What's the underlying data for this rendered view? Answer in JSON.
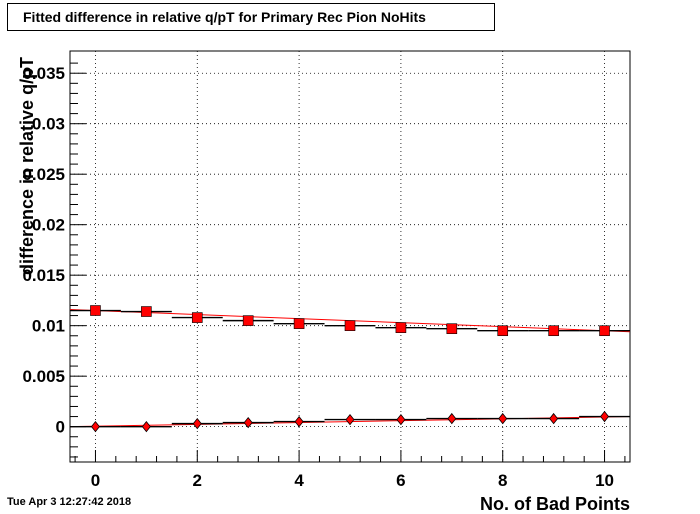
{
  "title": "Fitted difference in relative q/pT for Primary Rec Pion NoHits",
  "timestamp": "Tue Apr  3 12:27:42 2018",
  "chart_data": {
    "type": "scatter",
    "title": "Fitted difference in relative q/pT for Primary Rec Pion NoHits",
    "xlabel": "No. of Bad Points",
    "ylabel": "difference in relative q/pT",
    "xlim": [
      -0.5,
      10.5
    ],
    "ylim": [
      -0.0035,
      0.0372
    ],
    "grid": true,
    "x_ticks": [
      0,
      2,
      4,
      6,
      8,
      10
    ],
    "x_tick_labels": [
      "0",
      "2",
      "4",
      "6",
      "8",
      "10"
    ],
    "y_ticks": [
      0,
      0.005,
      0.01,
      0.015,
      0.02,
      0.025,
      0.03,
      0.035
    ],
    "y_tick_labels": [
      "0",
      "0.005",
      "0.01",
      "0.015",
      "0.02",
      "0.025",
      "0.03",
      "0.035"
    ],
    "x": [
      0,
      1,
      2,
      3,
      4,
      5,
      6,
      7,
      8,
      9,
      10
    ],
    "series": [
      {
        "marker": "square",
        "color": "#ff0000",
        "values": [
          0.0115,
          0.0114,
          0.0108,
          0.0105,
          0.0102,
          0.01,
          0.0098,
          0.0097,
          0.0095,
          0.0095,
          0.0095
        ],
        "fit": {
          "start": 0.0116,
          "end": 0.0094
        }
      },
      {
        "marker": "diamond",
        "color": "#ff0000",
        "values": [
          0.0,
          0.0,
          0.0003,
          0.0004,
          0.0005,
          0.0007,
          0.0007,
          0.0008,
          0.0008,
          0.0008,
          0.001
        ],
        "fit": {
          "start": 0.0,
          "end": 0.001
        }
      }
    ]
  }
}
